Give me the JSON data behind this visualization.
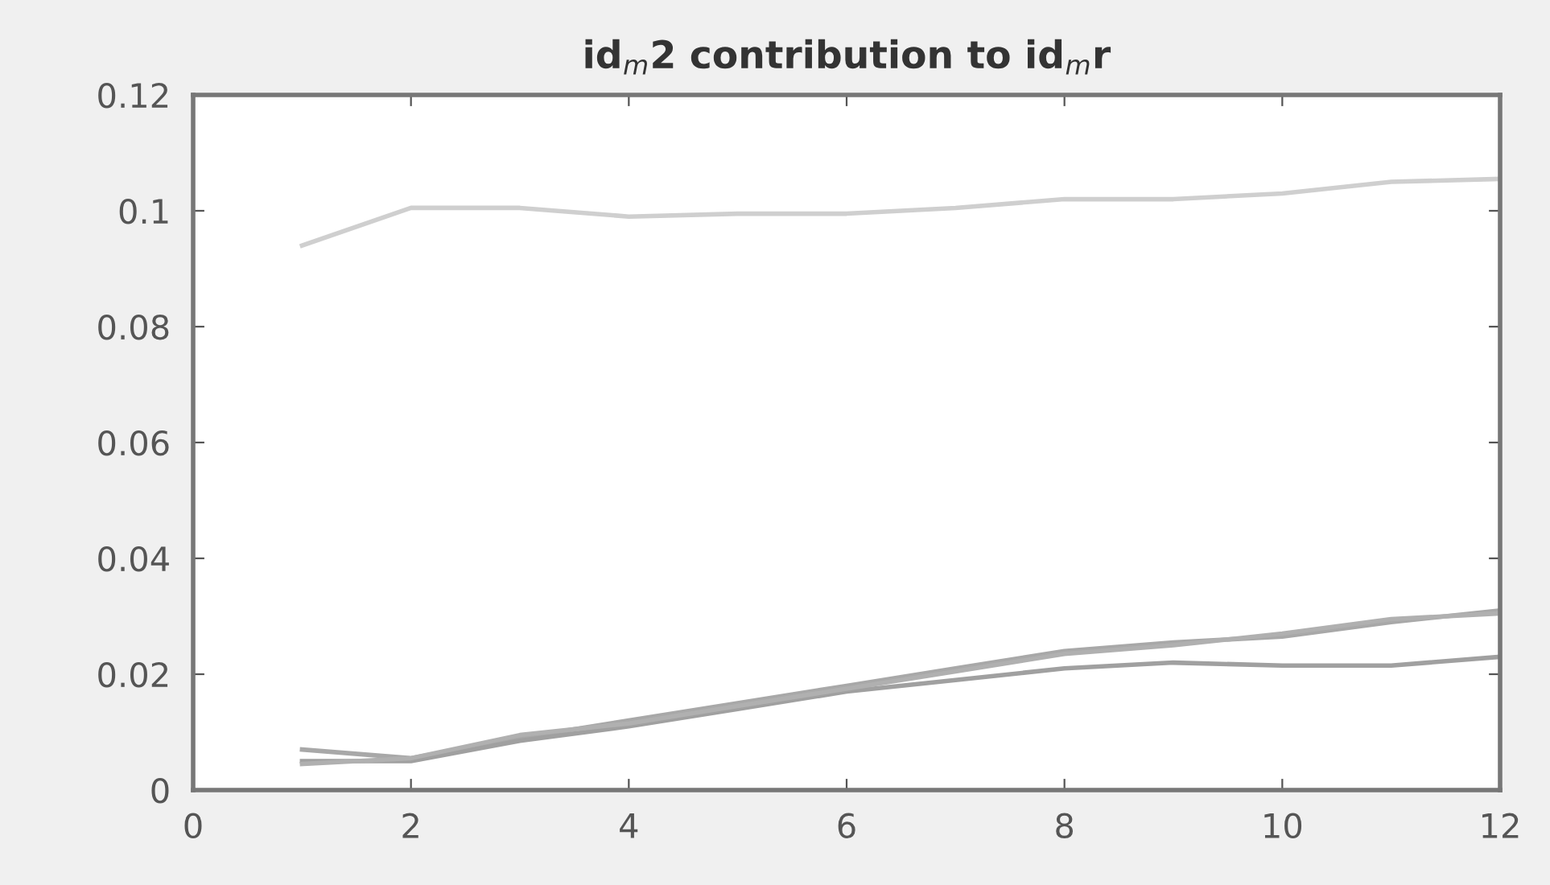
{
  "chart_data": {
    "type": "line",
    "title": "id$_{m}$2 contribution to id$_{m}$r",
    "x": [
      1,
      2,
      3,
      4,
      5,
      6,
      7,
      8,
      9,
      10,
      11,
      12
    ],
    "series": [
      {
        "color": "#cfcfcf",
        "values": [
          0.094,
          0.1005,
          0.1005,
          0.099,
          0.0995,
          0.0995,
          0.1005,
          0.102,
          0.102,
          0.103,
          0.105,
          0.1055
        ]
      },
      {
        "color": "#a8a8a8",
        "values": [
          0.007,
          0.0055,
          0.009,
          0.012,
          0.015,
          0.018,
          0.021,
          0.024,
          0.0255,
          0.0265,
          0.029,
          0.031
        ]
      },
      {
        "color": "#a0a0a0",
        "values": [
          0.005,
          0.005,
          0.0085,
          0.011,
          0.014,
          0.017,
          0.019,
          0.021,
          0.022,
          0.0215,
          0.0215,
          0.023
        ]
      },
      {
        "color": "#b0b0b0",
        "values": [
          0.0045,
          0.0055,
          0.0095,
          0.0115,
          0.0145,
          0.0175,
          0.0205,
          0.0235,
          0.025,
          0.027,
          0.0295,
          0.0305
        ]
      }
    ],
    "xlim": [
      0,
      12
    ],
    "ylim": [
      0,
      0.12
    ],
    "xticks": [
      0,
      2,
      4,
      6,
      8,
      10,
      12
    ],
    "yticks": [
      0,
      0.02,
      0.04,
      0.06,
      0.08,
      0.1,
      0.12
    ]
  }
}
